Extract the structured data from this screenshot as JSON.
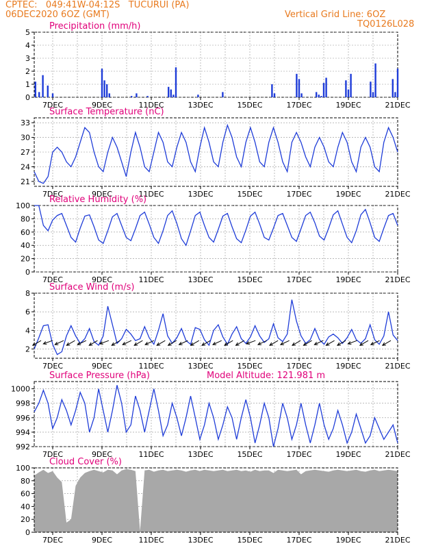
{
  "header": {
    "line1": "CPTEC:   049:41W-04:12S   TUCURUI (PA)",
    "line2": "06DEC2020 6OZ (GMT)",
    "right1": "Vertical Grid Line: 6OZ",
    "right2": "TQ0126L028"
  },
  "colors": {
    "header": "#e87a1e",
    "title": "#e0007a",
    "line": "#1e3cd8",
    "cloud": "#a8a8a8",
    "grid": "#909090"
  },
  "x_ticks": [
    "7DEC",
    "9DEC",
    "11DEC",
    "13DEC",
    "15DEC",
    "17DEC",
    "19DEC",
    "21DEC"
  ],
  "chart_data": [
    {
      "type": "bar",
      "title": "Precipitation (mm/h)",
      "ylim": [
        0,
        5
      ],
      "yticks": [
        0,
        1,
        2,
        3,
        4,
        5
      ],
      "x": [
        "06.3",
        "06.45",
        "06.6",
        "06.8",
        "07.0",
        "09.0",
        "09.1",
        "09.2",
        "09.3",
        "10.2",
        "10.4",
        "10.85",
        "11.7",
        "11.8",
        "11.9",
        "12.0",
        "12.9",
        "13.9",
        "15.9",
        "16.0",
        "16.9",
        "17.0",
        "17.1",
        "17.7",
        "17.8",
        "17.9",
        "18.0",
        "18.1",
        "18.9",
        "19.0",
        "19.1",
        "19.9",
        "20.0",
        "20.1",
        "20.8",
        "20.9",
        "21.0"
      ],
      "values": [
        1.2,
        0.4,
        1.7,
        0.9,
        0.3,
        2.2,
        1.3,
        1.0,
        0.3,
        0.1,
        0.3,
        0.1,
        0.8,
        0.6,
        0.2,
        2.3,
        0.2,
        0.4,
        1.0,
        0.3,
        1.8,
        1.4,
        0.3,
        0.4,
        0.2,
        0.1,
        1.1,
        1.5,
        1.3,
        0.6,
        1.8,
        1.2,
        0.4,
        2.6,
        1.4,
        0.4,
        2.2
      ]
    },
    {
      "type": "line",
      "title": "Surface Temperature (nC)",
      "ylim": [
        20,
        34
      ],
      "yticks": [
        21,
        24,
        27,
        30,
        33
      ],
      "series": [
        {
          "values": [
            23,
            21,
            20.6,
            22,
            27,
            28,
            27,
            25,
            24,
            26,
            29,
            32,
            31,
            27,
            24,
            23,
            27,
            30,
            28,
            25,
            22,
            27,
            31,
            28,
            24,
            23,
            27,
            31,
            29,
            25,
            24,
            28,
            31,
            29,
            25,
            23,
            28,
            32,
            29,
            25,
            24,
            29,
            32.5,
            30,
            26,
            24,
            29,
            32,
            29,
            25,
            24,
            29,
            32,
            29,
            25,
            23,
            29,
            31,
            29,
            26,
            24,
            28,
            30,
            28,
            25,
            24,
            28,
            31,
            29,
            25,
            23,
            28,
            30,
            28,
            24,
            23,
            29,
            32,
            30,
            27
          ]
        }
      ]
    },
    {
      "type": "line",
      "title": "Relative Humidity (%)",
      "ylim": [
        0,
        100
      ],
      "yticks": [
        0,
        20,
        40,
        60,
        80,
        100
      ],
      "series": [
        {
          "values": [
            100,
            100,
            70,
            62,
            78,
            85,
            88,
            70,
            52,
            45,
            66,
            84,
            86,
            68,
            48,
            43,
            62,
            83,
            88,
            70,
            52,
            47,
            65,
            85,
            90,
            72,
            52,
            43,
            62,
            85,
            92,
            73,
            50,
            40,
            62,
            85,
            90,
            70,
            52,
            45,
            64,
            84,
            88,
            68,
            50,
            44,
            63,
            84,
            90,
            72,
            52,
            48,
            66,
            85,
            88,
            70,
            52,
            46,
            65,
            85,
            90,
            74,
            54,
            48,
            66,
            86,
            92,
            72,
            52,
            44,
            62,
            86,
            94,
            74,
            52,
            46,
            66,
            85,
            88,
            70
          ]
        }
      ]
    },
    {
      "type": "line",
      "title": "Surface Wind (m/s)",
      "ylim": [
        1,
        8
      ],
      "yticks": [
        2,
        4,
        6,
        8
      ],
      "series": [
        {
          "values": [
            2.0,
            3.2,
            4.5,
            4.6,
            2.5,
            1.4,
            1.7,
            3.4,
            4.5,
            3.4,
            2.6,
            3.1,
            4.2,
            2.8,
            2.4,
            3.4,
            6.6,
            4.6,
            2.6,
            3.1,
            4.1,
            3.6,
            2.9,
            3.1,
            4.4,
            3.2,
            2.5,
            4.0,
            5.8,
            3.4,
            2.6,
            3.2,
            4.2,
            2.9,
            2.5,
            4.3,
            4.1,
            3.0,
            2.4,
            4.0,
            4.6,
            3.3,
            2.5,
            3.6,
            4.4,
            3.1,
            2.6,
            3.3,
            4.5,
            3.4,
            2.7,
            3.1,
            4.7,
            3.2,
            2.8,
            3.6,
            7.3,
            5.0,
            3.4,
            2.6,
            3.0,
            4.2,
            3.0,
            2.5,
            3.3,
            3.6,
            3.2,
            2.6,
            3.2,
            4.1,
            3.0,
            2.6,
            3.1,
            4.6,
            3.0,
            2.5,
            3.4,
            6.0,
            3.5,
            2.9
          ]
        }
      ],
      "arrows_deg_from_east": [
        210,
        200,
        205,
        210,
        205,
        210,
        200,
        210,
        205,
        210,
        205,
        210,
        210,
        205,
        210,
        210,
        205,
        210,
        210,
        200,
        205,
        210,
        205,
        210,
        210,
        205,
        210,
        210,
        200,
        210,
        205,
        210
      ]
    },
    {
      "type": "line",
      "title": "Surface Pressure (hPa)",
      "annotation": "Model Altitude: 121.981 m",
      "ylim": [
        992,
        1001
      ],
      "yticks": [
        992,
        994,
        996,
        998,
        1000
      ],
      "series": [
        {
          "values": [
            996.8,
            998,
            999.8,
            998,
            994.5,
            996,
            998.5,
            997,
            995,
            997,
            999.5,
            998,
            994,
            996,
            1000,
            997,
            994,
            997,
            1000.5,
            998,
            994,
            995,
            999,
            997,
            994,
            997,
            1000,
            997,
            993.5,
            995,
            998,
            996,
            993.5,
            996,
            999,
            996,
            993,
            995,
            998,
            996,
            993,
            995,
            997.5,
            996,
            993,
            996,
            998.5,
            996,
            992.5,
            995,
            998,
            996,
            992,
            994.5,
            998,
            996,
            993,
            995,
            998,
            995,
            992.5,
            995,
            998,
            995,
            993,
            994.5,
            997,
            995,
            992.5,
            994,
            996.5,
            994.5,
            992.5,
            993.5,
            996,
            994.5,
            993,
            994,
            995,
            992.5
          ]
        }
      ]
    },
    {
      "type": "area",
      "title": "Cloud Cover (%)",
      "ylim": [
        0,
        100
      ],
      "yticks": [
        0,
        20,
        40,
        60,
        80,
        100
      ],
      "series": [
        {
          "values": [
            88,
            93,
            97,
            92,
            95,
            85,
            78,
            15,
            20,
            72,
            85,
            92,
            95,
            97,
            95,
            93,
            97,
            96,
            90,
            96,
            98,
            97,
            95,
            2,
            96,
            97,
            94,
            96,
            97,
            95,
            96,
            97,
            96,
            94,
            96,
            97,
            95,
            97,
            96,
            95,
            96,
            97,
            95,
            96,
            97,
            95,
            96,
            94,
            97,
            95,
            96,
            96,
            92,
            97,
            96,
            95,
            96,
            97,
            90,
            95,
            96,
            97,
            96,
            95,
            94,
            96,
            97,
            96,
            95,
            96,
            97,
            95,
            94,
            96,
            97,
            95,
            96,
            97,
            96,
            95
          ]
        }
      ]
    }
  ]
}
